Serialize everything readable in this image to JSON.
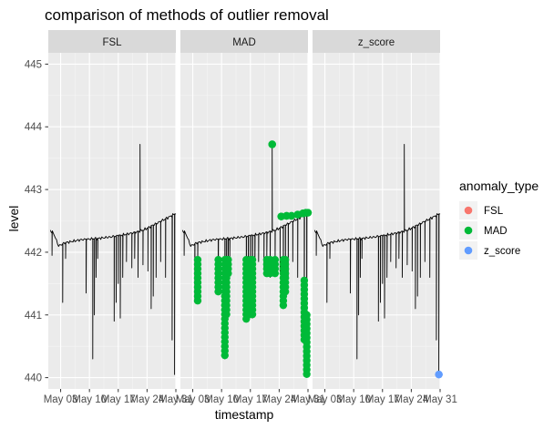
{
  "chart_data": {
    "type": "line",
    "title": "comparison of methods of outlier removal",
    "xlabel": "timestamp",
    "ylabel": "level",
    "ylim": [
      439.82,
      445.18
    ],
    "yticks": [
      440,
      441,
      442,
      443,
      444,
      445
    ],
    "xlim": [
      0,
      31
    ],
    "xticks": [
      {
        "day": 3,
        "label": "May 03"
      },
      {
        "day": 10,
        "label": "May 10"
      },
      {
        "day": 17,
        "label": "May 17"
      },
      {
        "day": 24,
        "label": "May 24"
      },
      {
        "day": 31,
        "label": "May 31"
      }
    ],
    "facets": [
      "FSL",
      "MAD",
      "z_score"
    ],
    "grid": true,
    "legend": {
      "title": "anomaly_type",
      "position": "right",
      "items": [
        {
          "label": "FSL",
          "color": "#F8766D"
        },
        {
          "label": "MAD",
          "color": "#00BA38"
        },
        {
          "label": "z_score",
          "color": "#619CFF"
        }
      ]
    },
    "level_series": {
      "baseline": [
        [
          0.5,
          442.35
        ],
        [
          1.3,
          442.3
        ],
        [
          2.5,
          442.1
        ],
        [
          4,
          442.15
        ],
        [
          8,
          442.2
        ],
        [
          12,
          442.22
        ],
        [
          16,
          442.25
        ],
        [
          20,
          442.3
        ],
        [
          23,
          442.35
        ],
        [
          26,
          442.45
        ],
        [
          29,
          442.55
        ],
        [
          31,
          442.62
        ]
      ],
      "spikes": [
        {
          "x": 0.9,
          "y": 441.95
        },
        {
          "x": 3.5,
          "y": 441.2
        },
        {
          "x": 4.2,
          "y": 441.9
        },
        {
          "x": 9.2,
          "y": 441.35
        },
        {
          "x": 10.8,
          "y": 440.3
        },
        {
          "x": 11.2,
          "y": 441.0
        },
        {
          "x": 11.6,
          "y": 441.6
        },
        {
          "x": 12.0,
          "y": 441.9
        },
        {
          "x": 16.0,
          "y": 440.9
        },
        {
          "x": 16.5,
          "y": 441.2
        },
        {
          "x": 17.0,
          "y": 441.5
        },
        {
          "x": 17.5,
          "y": 440.95
        },
        {
          "x": 18.1,
          "y": 441.6
        },
        {
          "x": 19.0,
          "y": 441.85
        },
        {
          "x": 20.3,
          "y": 441.75
        },
        {
          "x": 21.0,
          "y": 441.9
        },
        {
          "x": 21.8,
          "y": 441.6
        },
        {
          "x": 22.3,
          "y": 443.72
        },
        {
          "x": 23.0,
          "y": 441.8
        },
        {
          "x": 24.2,
          "y": 441.7
        },
        {
          "x": 25.0,
          "y": 441.1
        },
        {
          "x": 25.5,
          "y": 441.3
        },
        {
          "x": 26.2,
          "y": 441.6
        },
        {
          "x": 27.3,
          "y": 441.85
        },
        {
          "x": 28.5,
          "y": 441.6
        },
        {
          "x": 30.1,
          "y": 440.6
        },
        {
          "x": 30.7,
          "y": 440.05
        }
      ]
    },
    "anomalies": {
      "FSL": [],
      "MAD": [
        {
          "x": 4.2,
          "y_from": 441.2,
          "y_to": 441.88
        },
        {
          "x": 9.2,
          "y_from": 441.35,
          "y_to": 441.88
        },
        {
          "x": 10.8,
          "y_from": 440.3,
          "y_to": 441.88
        },
        {
          "x": 11.2,
          "y_from": 441.0,
          "y_to": 441.88
        },
        {
          "x": 11.6,
          "y_from": 441.6,
          "y_to": 441.88
        },
        {
          "x": 16.0,
          "y_from": 440.9,
          "y_to": 441.88
        },
        {
          "x": 17.0,
          "y_from": 441.0,
          "y_to": 441.88
        },
        {
          "x": 17.5,
          "y_from": 440.95,
          "y_to": 441.88
        },
        {
          "x": 21.0,
          "y_from": 441.6,
          "y_to": 441.88
        },
        {
          "x": 21.8,
          "y_from": 441.6,
          "y_to": 441.88
        },
        {
          "x": 23.0,
          "y_from": 441.6,
          "y_to": 441.88
        },
        {
          "x": 25.0,
          "y_from": 441.1,
          "y_to": 441.88
        },
        {
          "x": 25.5,
          "y_from": 441.3,
          "y_to": 441.88
        },
        {
          "x": 30.1,
          "y_from": 440.6,
          "y_to": 441.55
        },
        {
          "x": 30.7,
          "y_from": 440.05,
          "y_to": 441.0
        },
        {
          "x": 22.3,
          "y_from": 443.72,
          "y_to": 443.72
        },
        {
          "x": 24.5,
          "y_from": 442.57,
          "y_to": 442.57
        },
        {
          "x": 25.8,
          "y_from": 442.58,
          "y_to": 442.58
        },
        {
          "x": 27.0,
          "y_from": 442.58,
          "y_to": 442.58
        },
        {
          "x": 28.5,
          "y_from": 442.6,
          "y_to": 442.6
        },
        {
          "x": 29.8,
          "y_from": 442.62,
          "y_to": 442.62
        },
        {
          "x": 30.5,
          "y_from": 442.63,
          "y_to": 442.63
        },
        {
          "x": 31.0,
          "y_from": 442.63,
          "y_to": 442.63
        }
      ],
      "z_score": [
        {
          "x": 30.7,
          "y_from": 440.05,
          "y_to": 440.05
        }
      ]
    }
  }
}
